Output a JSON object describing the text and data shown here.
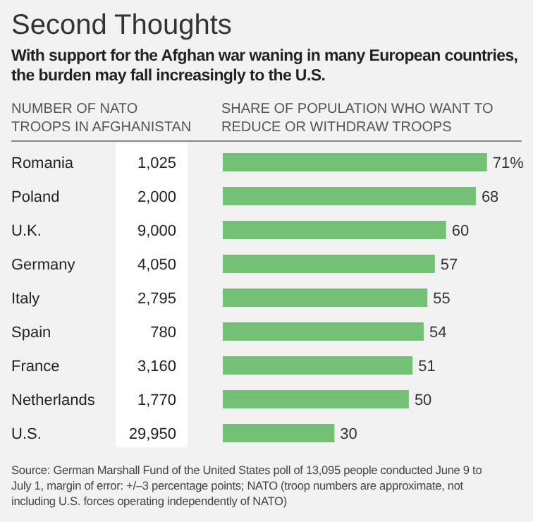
{
  "chart_data": [
    {
      "type": "other",
      "title": "Second Thoughts",
      "subtitle": "With support for the Afghan war waning in many European countries,\nthe burden may fall increasingly to the U.S.",
      "xlabel": "NUMBER OF NATO\nTROOPS IN AFGHANISTAN",
      "values": [
        1025,
        2000,
        9000,
        4050,
        2795,
        780,
        3160,
        1770,
        29950
      ],
      "value_labels": [
        "1,025",
        "2,000",
        "9,000",
        "4,050",
        "2,795",
        "780",
        "3,160",
        "1,770",
        "29,950"
      ],
      "annotations": [
        "Source: German Marshall Fund of the United States poll of 13,095 people conducted June 9 to\nJuly 1, margin of error: +/–3 percentage points; NATO (troop numbers are approximate, not\nincluding U.S. forces operating independently of NATO)"
      ]
    },
    {
      "type": "bar",
      "orientation": "horizontal",
      "xlabel": "SHARE OF POPULATION WHO WANT TO\nREDUCE OR WITHDRAW TROOPS",
      "categories": [
        "Romania",
        "Poland",
        "U.K.",
        "Germany",
        "Italy",
        "Spain",
        "France",
        "Netherlands",
        "U.S."
      ],
      "values": [
        71,
        68,
        60,
        57,
        55,
        54,
        51,
        50,
        30
      ],
      "value_labels": [
        "71%",
        "68",
        "60",
        "57",
        "55",
        "54",
        "51",
        "50",
        "30"
      ],
      "color": "#72c174",
      "xlim": [
        0,
        72
      ],
      "tick_labels": "y"
    }
  ]
}
